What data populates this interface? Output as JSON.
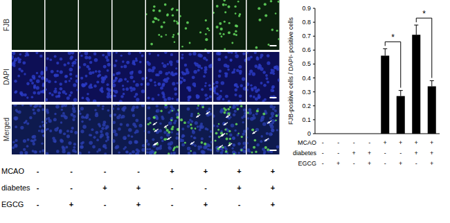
{
  "chart_data": {
    "type": "bar",
    "y_label": "FJB-positive cells / DAPI- positive cells",
    "categories": [
      null,
      null,
      null,
      null,
      null,
      null,
      null,
      null
    ],
    "values": [
      0,
      0,
      0,
      0,
      0.56,
      0.27,
      0.71,
      0.34
    ],
    "errors": [
      0,
      0,
      0,
      0,
      0.05,
      0.04,
      0.07,
      0.04
    ],
    "color": "#000000",
    "ylim": [
      0,
      0.9
    ],
    "yticks": [
      0,
      0.1,
      0.2,
      0.3,
      0.4,
      0.5,
      0.6,
      0.7,
      0.8,
      0.9
    ],
    "grid": false,
    "tick_labels": "y",
    "annotations": [
      {
        "text": "*",
        "categories": [
          4,
          5
        ]
      },
      {
        "text": "*",
        "categories": [
          6,
          7
        ]
      }
    ],
    "conditions": [
      {
        "label": "MCAO",
        "values": [
          "-",
          "-",
          "-",
          "-",
          "+",
          "+",
          "+",
          "+"
        ]
      },
      {
        "label": "diabetes",
        "values": [
          "-",
          "-",
          "+",
          "+",
          "-",
          "-",
          "+",
          "+"
        ]
      },
      {
        "label": "EGCG",
        "values": [
          "-",
          "+",
          "-",
          "+",
          "-",
          "+",
          "-",
          "+"
        ]
      }
    ]
  },
  "micrographs": {
    "rows": [
      "FJB",
      "DAPI",
      "Merged"
    ],
    "conditions": [
      {
        "label": "MCAO",
        "values": [
          "-",
          "-",
          "-",
          "-",
          "+",
          "+",
          "+",
          "+"
        ]
      },
      {
        "label": "diabetes",
        "values": [
          "-",
          "-",
          "+",
          "+",
          "-",
          "-",
          "+",
          "+"
        ]
      },
      {
        "label": "EGCG",
        "values": [
          "-",
          "+",
          "-",
          "+",
          "-",
          "+",
          "-",
          "+"
        ]
      }
    ]
  }
}
